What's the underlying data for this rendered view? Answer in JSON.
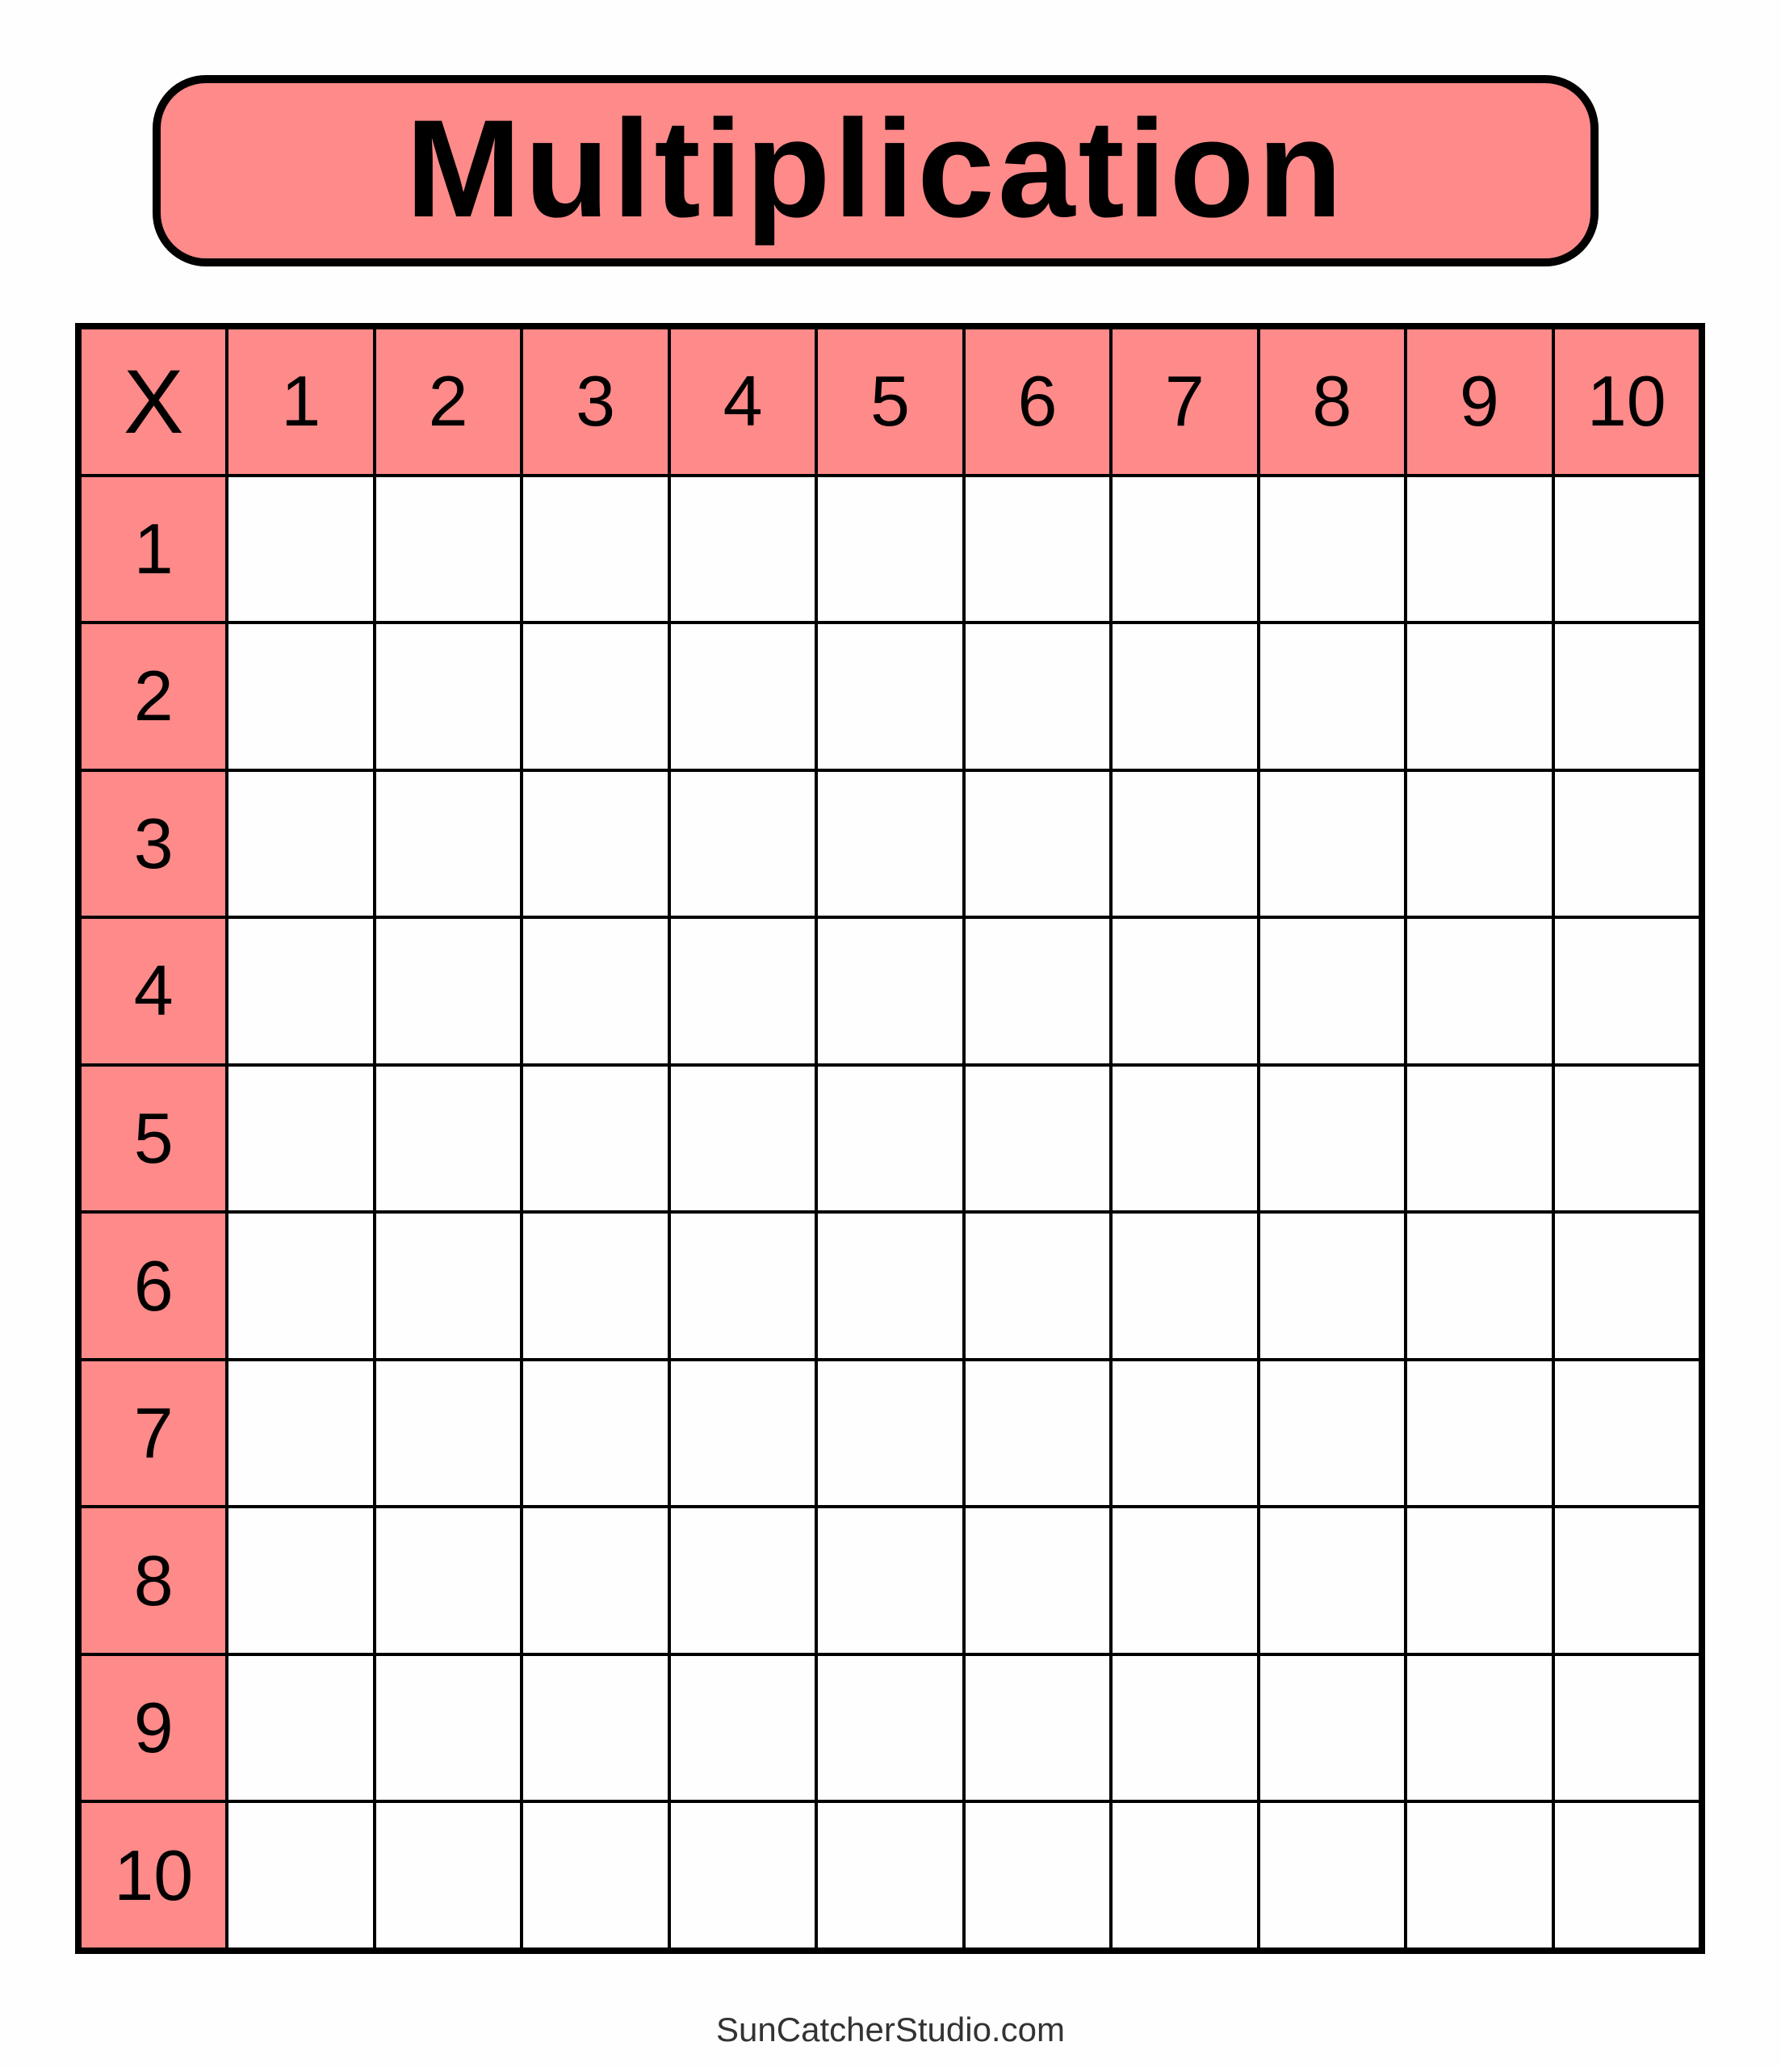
{
  "title": "Multiplication",
  "corner_label": "X",
  "column_headers": [
    "1",
    "2",
    "3",
    "4",
    "5",
    "6",
    "7",
    "8",
    "9",
    "10"
  ],
  "row_headers": [
    "1",
    "2",
    "3",
    "4",
    "5",
    "6",
    "7",
    "8",
    "9",
    "10"
  ],
  "footer": "SunCatcherStudio.com",
  "colors": {
    "accent": "#ff8a8a",
    "border": "#000000"
  }
}
